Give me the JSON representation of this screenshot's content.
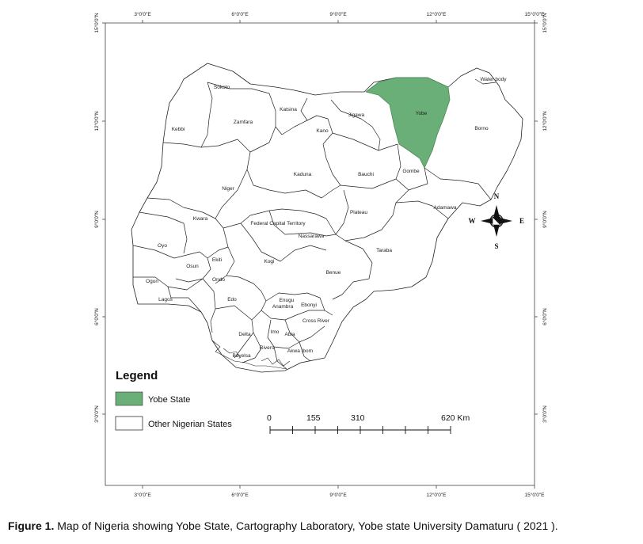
{
  "ticks": {
    "x": [
      "3°0'0\"E",
      "6°0'0\"E",
      "9°0'0\"E",
      "12°0'0\"E",
      "15°0'0\"E"
    ],
    "y": [
      "15°0'0\"N",
      "12°0'0\"N",
      "9°0'0\"N",
      "6°0'0\"N",
      "3°0'0\"N"
    ]
  },
  "states": [
    "Sokoto",
    "Katsina",
    "Jigawa",
    "Yobe",
    "Water body",
    "Borno",
    "Zamfara",
    "Kebbi",
    "Kano",
    "Kaduna",
    "Bauchi",
    "Gombe",
    "Niger",
    "Plateau",
    "Adamawa",
    "Kwara",
    "Federal Capital Territory",
    "Nassarawa",
    "Oyo",
    "Kogi",
    "Taraba",
    "Osun",
    "Ekiti",
    "Ogun",
    "Ondo",
    "Benue",
    "Lagos",
    "Edo",
    "Enugu",
    "Ebonyi",
    "Anambra",
    "Cross River",
    "Delta",
    "Imo",
    "Abia",
    "Rivers",
    "Akwa Ibom",
    "Bayelsa"
  ],
  "highlight": {
    "state": "Yobe",
    "color": "#6aae78"
  },
  "north_arrow": {
    "n": "N",
    "s": "S",
    "e": "E",
    "w": "W"
  },
  "legend": {
    "title": "Legend",
    "items": [
      {
        "label": "Yobe State",
        "color": "#6aae78"
      },
      {
        "label": "Other Nigerian States",
        "color": "#ffffff"
      }
    ]
  },
  "scale_bar": {
    "labels": [
      "0",
      "155",
      "310",
      "620 Km"
    ]
  },
  "caption": {
    "prefix": "Figure 1.",
    "text": " Map of Nigeria showing Yobe State, Cartography Laboratory, Yobe state University Damaturu ( 2021 )."
  }
}
